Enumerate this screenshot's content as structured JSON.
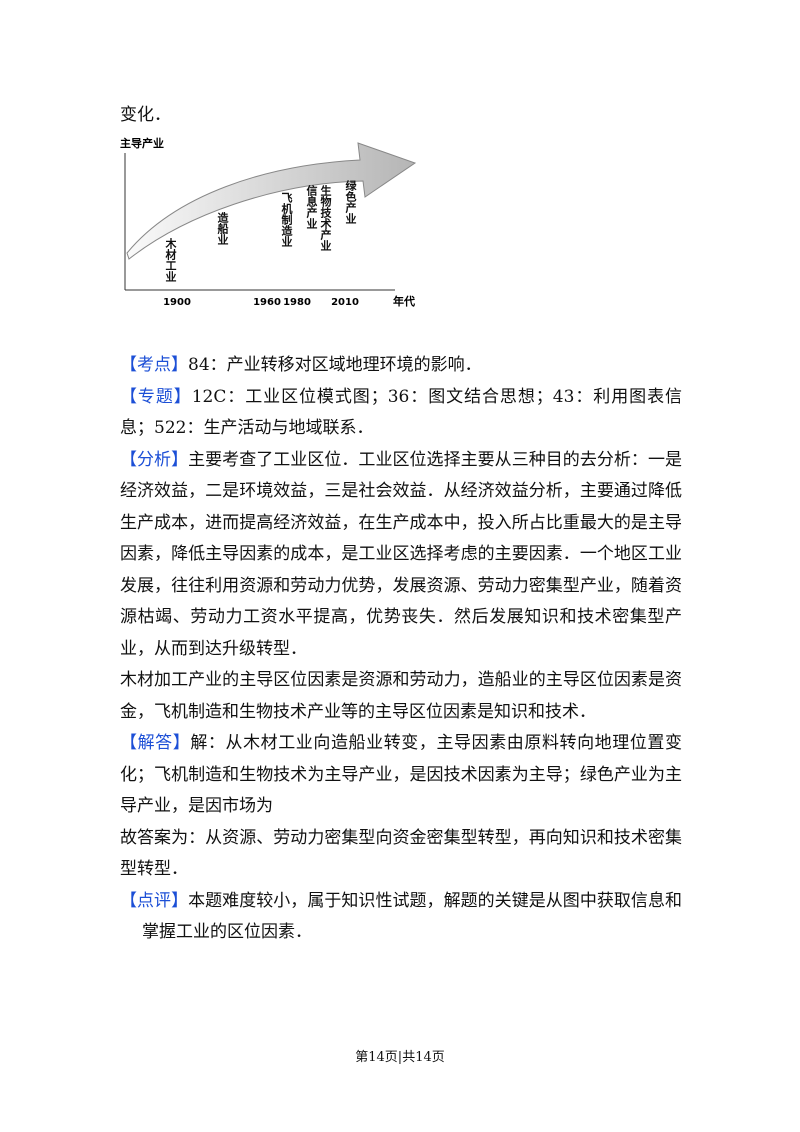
{
  "intro": "变化．",
  "figure": {
    "y_axis_label": "主导产业",
    "x_axis_label": "年代",
    "years": [
      "1900",
      "1960",
      "1980",
      "2010"
    ],
    "industries": [
      "木材工业",
      "造船业",
      "飞机制造业",
      "信息产业",
      "生物技术产业",
      "绿色产业"
    ]
  },
  "sections": [
    {
      "label": "【考点】",
      "text": "84：产业转移对区域地理环境的影响．"
    },
    {
      "label": "【专题】",
      "text": "12C：工业区位模式图；36：图文结合思想；43：利用图表信息；522：生产活动与地域联系．"
    },
    {
      "label": "【分析】",
      "text": "主要考查了工业区位．工业区位选择主要从三种目的去分析：一是经济效益，二是环境效益，三是社会效益．从经济效益分析，主要通过降低生产成本，进而提高经济效益，在生产成本中，投入所占比重最大的是主导因素，降低主导因素的成本，是工业区选择考虑的主要因素．一个地区工业发展，往往利用资源和劳动力优势，发展资源、劳动力密集型产业，随着资源枯竭、劳动力工资水平提高，优势丧失．然后发展知识和技术密集型产业，从而到达升级转型．"
    },
    {
      "label": null,
      "text": "木材加工产业的主导区位因素是资源和劳动力，造船业的主导区位因素是资金，飞机制造和生物技术产业等的主导区位因素是知识和技术．"
    },
    {
      "label": "【解答】",
      "text": "解：从木材工业向造船业转变，主导因素由原料转向地理位置变化；飞机制造和生物技术为主导产业，是因技术因素为主导；绿色产业为主导产业，是因市场为"
    },
    {
      "label": null,
      "text": "故答案为：从资源、劳动力密集型向资金密集型转型，再向知识和技术密集型转型．"
    },
    {
      "label": "【点评】",
      "text": "本题难度较小，属于知识性试题，解题的关键是从图中获取信息和掌握工业的区位因素．"
    }
  ],
  "footer": "第14页|共14页"
}
